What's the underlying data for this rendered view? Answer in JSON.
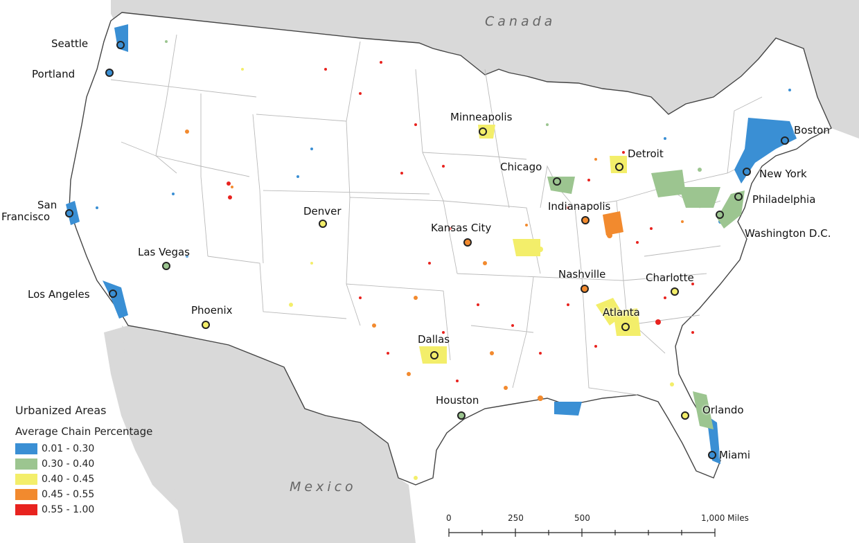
{
  "map": {
    "countries": {
      "canada": "Canada",
      "mexico": "Mexico"
    },
    "cities": [
      {
        "name": "Seattle",
        "class": "0.01 - 0.30"
      },
      {
        "name": "Portland",
        "class": "0.01 - 0.30"
      },
      {
        "name": "San Francisco",
        "class": "0.01 - 0.30"
      },
      {
        "name": "Los Angeles",
        "class": "0.01 - 0.30"
      },
      {
        "name": "Las Vegas",
        "class": "0.30 - 0.40"
      },
      {
        "name": "Phoenix",
        "class": "0.40 - 0.45"
      },
      {
        "name": "Denver",
        "class": "0.40 - 0.45"
      },
      {
        "name": "Minneapolis",
        "class": "0.40 - 0.45"
      },
      {
        "name": "Chicago",
        "class": "0.30 - 0.40"
      },
      {
        "name": "Detroit",
        "class": "0.40 - 0.45"
      },
      {
        "name": "Boston",
        "class": "0.01 - 0.30"
      },
      {
        "name": "New York",
        "class": "0.01 - 0.30"
      },
      {
        "name": "Philadelphia",
        "class": "0.30 - 0.40"
      },
      {
        "name": "Washington D.C.",
        "class": "0.30 - 0.40"
      },
      {
        "name": "Indianapolis",
        "class": "0.45 - 0.55"
      },
      {
        "name": "Kansas City",
        "class": "0.45 - 0.55"
      },
      {
        "name": "Nashville",
        "class": "0.45 - 0.55"
      },
      {
        "name": "Charlotte",
        "class": "0.40 - 0.45"
      },
      {
        "name": "Atlanta",
        "class": "0.40 - 0.45"
      },
      {
        "name": "Dallas",
        "class": "0.40 - 0.45"
      },
      {
        "name": "Houston",
        "class": "0.30 - 0.40"
      },
      {
        "name": "Orlando",
        "class": "0.40 - 0.45"
      },
      {
        "name": "Miami",
        "class": "0.01 - 0.30"
      }
    ],
    "labels": {
      "seattle": "Seattle",
      "portland": "Portland",
      "san": "San",
      "francisco": "Francisco",
      "los_angeles": "Los Angeles",
      "las_vegas": "Las Vegas",
      "phoenix": "Phoenix",
      "denver": "Denver",
      "minneapolis": "Minneapolis",
      "chicago": "Chicago",
      "detroit": "Detroit",
      "boston": "Boston",
      "new_york": "New York",
      "philadelphia": "Philadelphia",
      "washington": "Washington D.C.",
      "indianapolis": "Indianapolis",
      "kansas_city": "Kansas City",
      "nashville": "Nashville",
      "charlotte": "Charlotte",
      "atlanta": "Atlanta",
      "dallas": "Dallas",
      "houston": "Houston",
      "orlando": "Orlando",
      "miami": "Miami"
    }
  },
  "legend": {
    "title": "Urbanized Areas",
    "subtitle": "Average Chain Percentage",
    "items": [
      {
        "label": "0.01 - 0.30",
        "color": "#3a8fd4"
      },
      {
        "label": "0.30 - 0.40",
        "color": "#9cc590"
      },
      {
        "label": "0.40 - 0.45",
        "color": "#f3ee6a"
      },
      {
        "label": "0.45 - 0.55",
        "color": "#f28a2e"
      },
      {
        "label": "0.55 - 1.00",
        "color": "#e8231f"
      }
    ]
  },
  "scale_bar": {
    "labels": [
      "0",
      "250",
      "500",
      "1,000 Miles"
    ]
  },
  "colors": {
    "land": "#ffffff",
    "neighbor_land": "#d9d9d9",
    "water": "#ffffff",
    "border": "#444444",
    "state_line": "#b9b9b9"
  }
}
